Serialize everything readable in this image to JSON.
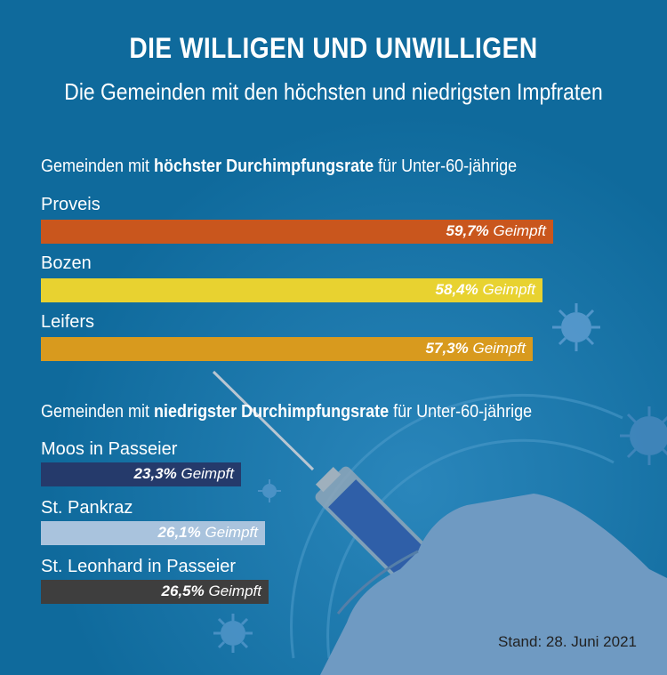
{
  "title": "DIE WILLIGEN UND UNWILLIGEN",
  "subtitle": "Die Gemeinden mit den höchsten und niedrigsten Impfraten",
  "sections": {
    "high": {
      "pre": "Gemeinden mit ",
      "bold": "höchster Durchimpfungsrate",
      "post": " für Unter-60-jährige"
    },
    "low": {
      "pre": "Gemeinden mit ",
      "bold": "niedrigster Durchimpfungsrate",
      "post": " für Unter-60-jährige"
    }
  },
  "value_suffix": "Geimpft",
  "stand": "Stand: 28. Juni 2021",
  "chart_data": [
    {
      "type": "bar",
      "orientation": "horizontal",
      "categories": [
        "Proveis",
        "Bozen",
        "Leifers"
      ],
      "values": [
        59.7,
        58.4,
        57.3
      ],
      "value_labels": [
        "59,7%",
        "58,4%",
        "57,3%"
      ],
      "colors": [
        "#c9561d",
        "#e8d230",
        "#d89a1e"
      ]
    },
    {
      "type": "bar",
      "orientation": "horizontal",
      "categories": [
        "Moos in Passeier",
        "St. Pankraz",
        "St. Leonhard in Passeier"
      ],
      "values": [
        23.3,
        26.1,
        26.5
      ],
      "value_labels": [
        "23,3%",
        "26,1%",
        "26,5%"
      ],
      "colors": [
        "#253a6b",
        "#a9c3dd",
        "#3e3e3e"
      ]
    }
  ]
}
